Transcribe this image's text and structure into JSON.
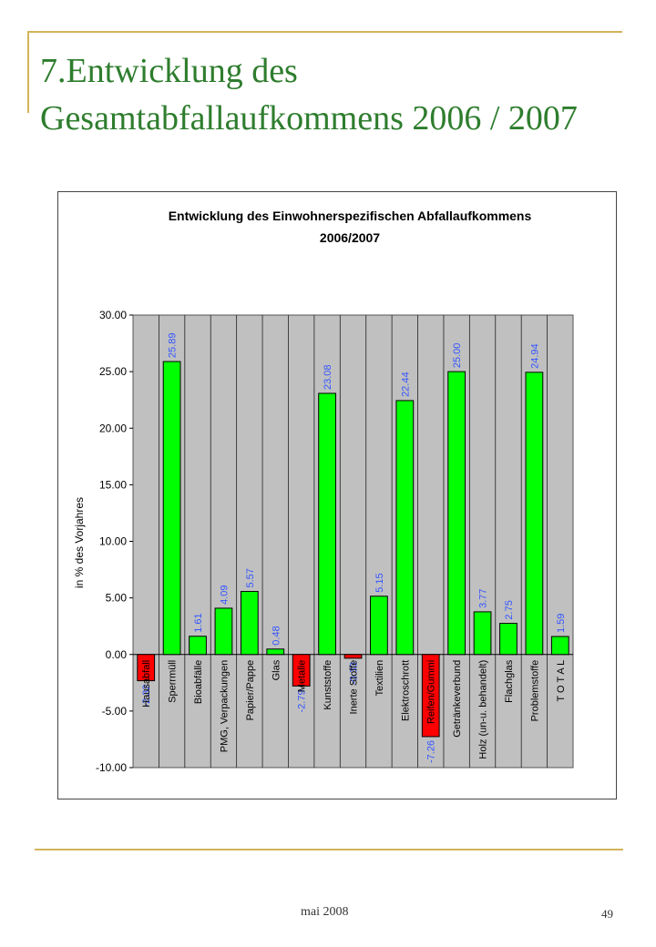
{
  "slide": {
    "title": "7.Entwicklung des Gesamtabfallaufkommens 2006 / 2007",
    "footer_date": "mai 2008",
    "page_number": "49"
  },
  "colors": {
    "accent": "#d4b45a",
    "title": "#2e7d2e",
    "positive_bar": "#00ff00",
    "negative_bar": "#ff0000",
    "plot_background": "#c0c0c0",
    "data_label": "#3355ff"
  },
  "chart_data": {
    "type": "bar",
    "title": "Entwicklung des Einwohnerspezifischen Abfallaufkommens",
    "subtitle": "2006/2007",
    "xlabel": "",
    "ylabel": "in % des Vorjahres",
    "ylim": [
      -10,
      30
    ],
    "yticks": [
      "30.00",
      "25.00",
      "20.00",
      "15.00",
      "10.00",
      "5.00",
      "0.00",
      "-5.00",
      "-10.00"
    ],
    "grid": "vertical",
    "legend": "none",
    "categories": [
      "Hausabfall",
      "Sperrmüll",
      "Bioabfälle",
      "PMG, Verpackungen",
      "Papier/Pappe",
      "Glas",
      "Metalle",
      "Kunststoffe",
      "Inerte Stoffe",
      "Textilien",
      "Elektroschrott",
      "Reifen/Gummi",
      "Getränkeverbund",
      "Holz (un-u. behandelt)",
      "Flachglas",
      "Problemstoffe",
      "T O T A L"
    ],
    "values": [
      -2.32,
      25.89,
      1.61,
      4.09,
      5.57,
      0.48,
      -2.79,
      23.08,
      -0.33,
      5.15,
      22.44,
      -7.26,
      25.0,
      3.77,
      2.75,
      24.94,
      1.59
    ],
    "value_labels": [
      "-2.32",
      "25.89",
      "1.61",
      "4.09",
      "5.57",
      "0.48",
      "-2.79",
      "23.08",
      "-0.33",
      "5.15",
      "22.44",
      "-7.26",
      "25.00",
      "3.77",
      "2.75",
      "24.94",
      "1.59"
    ]
  }
}
